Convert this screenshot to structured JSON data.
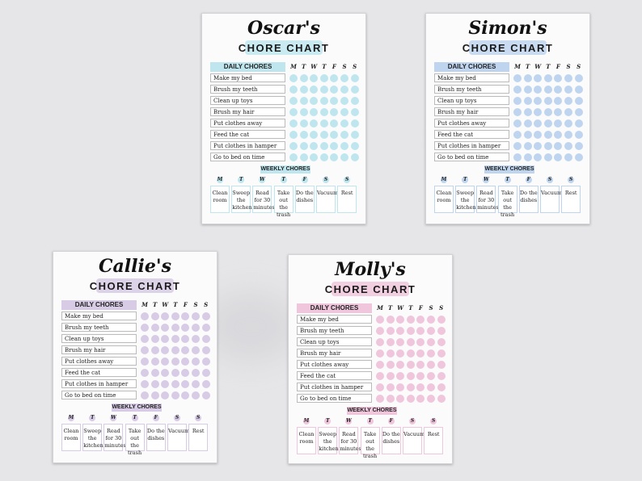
{
  "colors": {
    "blue_cyan": "#bfe6ee",
    "blue_soft": "#bfd5ef",
    "purple": "#d7cbe5",
    "pink": "#f0c6dc"
  },
  "chart_header": {
    "title": "CHORE CHART",
    "daily": "DAILY CHORES",
    "weekly": "WEEKLY CHORES",
    "days": [
      "M",
      "T",
      "W",
      "T",
      "F",
      "S",
      "S"
    ]
  },
  "daily_chores": [
    "Make my bed",
    "Brush my teeth",
    "Clean up toys",
    "Brush my hair",
    "Put clothes away",
    "Feed the cat",
    "Put clothes in hamper",
    "Go to bed on time"
  ],
  "weekly_chores": [
    "Clean room",
    "Sweep the kitchen",
    "Read for 30 minutes",
    "Take out the trash",
    "Do the dishes",
    "Vacuum",
    "Rest"
  ],
  "cards": [
    {
      "name": "Oscar's",
      "accent": "#bfe6ee"
    },
    {
      "name": "Simon's",
      "accent": "#bfd5ef"
    },
    {
      "name": "Callie's",
      "accent": "#d7cbe5"
    },
    {
      "name": "Molly's",
      "accent": "#f0c6dc"
    }
  ]
}
